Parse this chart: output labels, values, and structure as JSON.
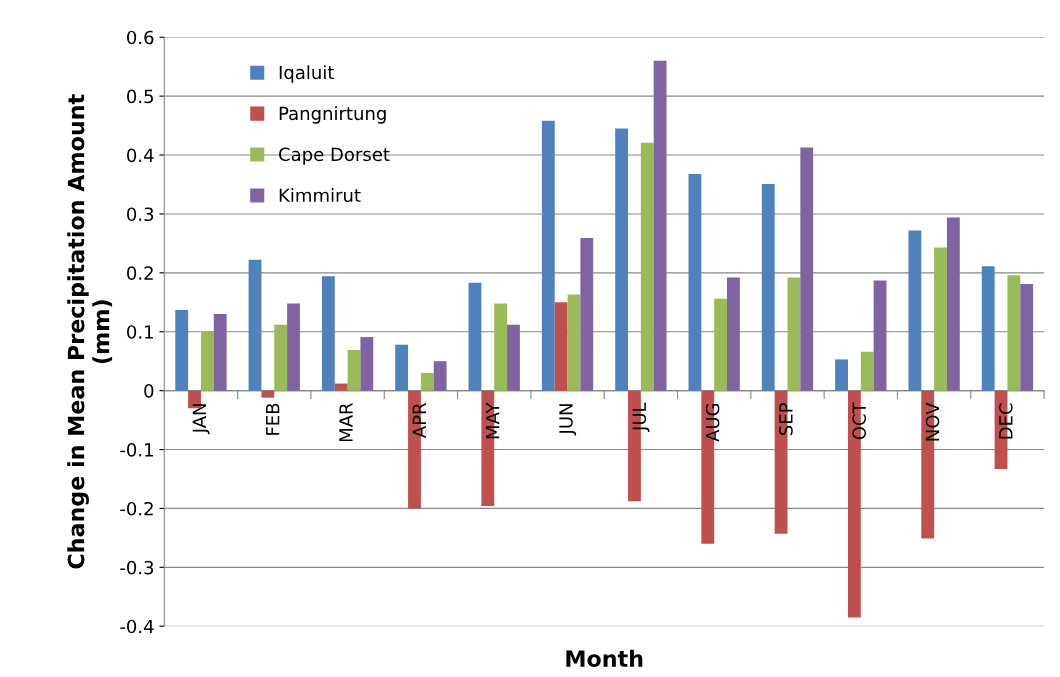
{
  "chart_data": {
    "type": "bar",
    "xlabel": "Month",
    "ylabel": "Change in Mean Precipitation Amount\n(mm)",
    "categories": [
      "JAN",
      "FEB",
      "MAR",
      "APR",
      "MAY",
      "JUN",
      "JUL",
      "AUG",
      "SEP",
      "OCT",
      "NOV",
      "DEC"
    ],
    "series": [
      {
        "name": "Iqaluit",
        "color": "#4f81bd",
        "values": [
          0.137,
          0.222,
          0.194,
          0.078,
          0.183,
          0.458,
          0.445,
          0.368,
          0.351,
          0.053,
          0.272,
          0.211
        ]
      },
      {
        "name": "Pangnirtung",
        "color": "#c0504d",
        "values": [
          -0.03,
          -0.012,
          0.012,
          -0.2,
          -0.196,
          0.15,
          -0.188,
          -0.26,
          -0.243,
          -0.385,
          -0.251,
          -0.133
        ]
      },
      {
        "name": "Cape Dorset",
        "color": "#9bbb59",
        "values": [
          0.1,
          0.112,
          0.069,
          0.03,
          0.148,
          0.163,
          0.421,
          0.156,
          0.192,
          0.066,
          0.243,
          0.196
        ]
      },
      {
        "name": "Kimmirut",
        "color": "#8064a2",
        "values": [
          0.13,
          0.148,
          0.091,
          0.05,
          0.112,
          0.259,
          0.56,
          0.192,
          0.413,
          0.187,
          0.294,
          0.181
        ]
      }
    ],
    "ylim": [
      -0.4,
      0.6
    ],
    "yticks": [
      {
        "value": -0.4,
        "label": "-0.4"
      },
      {
        "value": -0.3,
        "label": "-0.3"
      },
      {
        "value": -0.2,
        "label": "-0.2"
      },
      {
        "value": -0.1,
        "label": "-0.1"
      },
      0,
      0.1,
      0.2,
      0.3,
      0.4,
      0.5,
      0.6
    ],
    "grid": "y",
    "legend": "top left"
  }
}
